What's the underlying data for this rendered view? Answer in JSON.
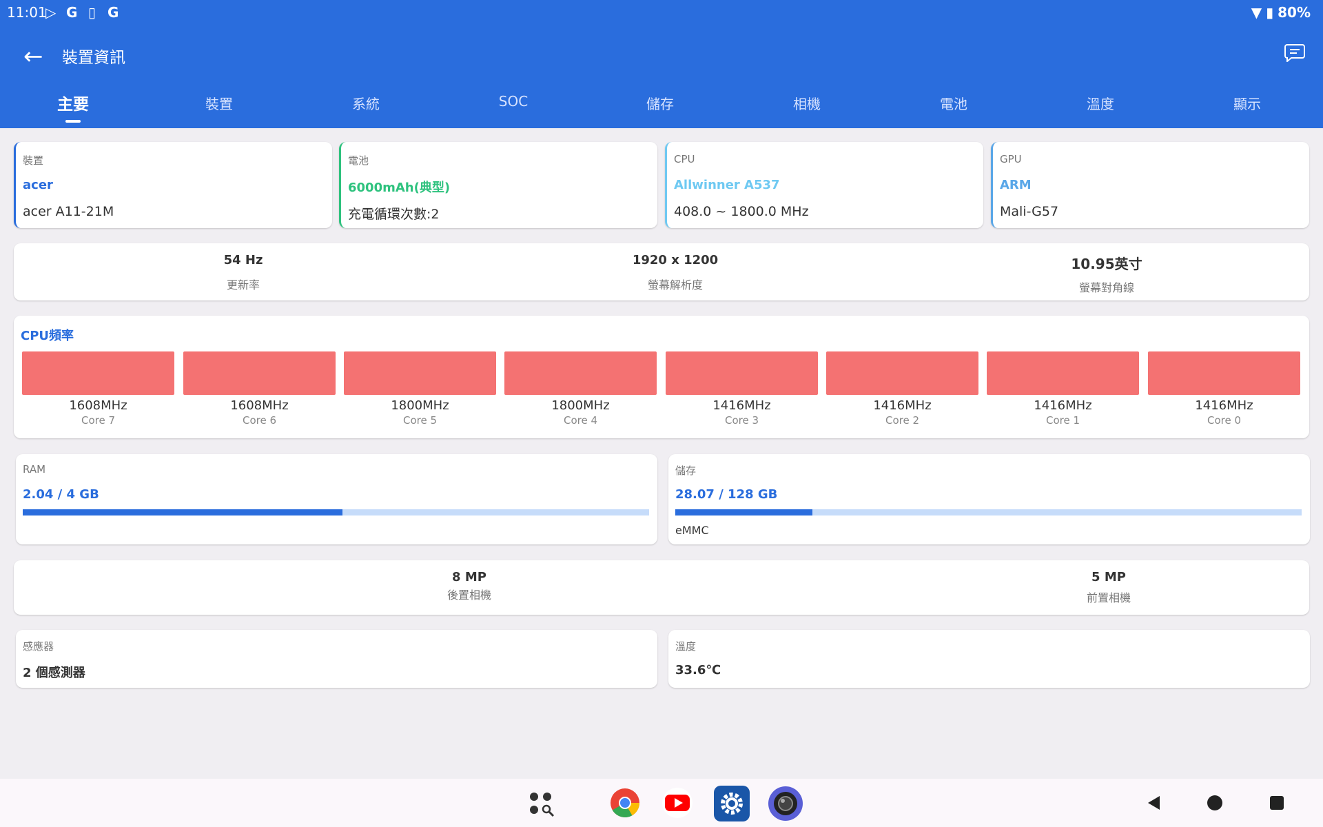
{
  "status": {
    "time": "11:01",
    "battery": "80%"
  },
  "header": {
    "title": "裝置資訊"
  },
  "tabs": [
    "主要",
    "裝置",
    "系統",
    "SOC",
    "儲存",
    "相機",
    "電池",
    "溫度",
    "顯示"
  ],
  "summary": {
    "device": {
      "label": "裝置",
      "value": "acer",
      "sub": "acer A11-21M",
      "color": "#2a6ddd"
    },
    "battery": {
      "label": "電池",
      "value": "6000mAh(典型)",
      "sub": "充電循環次數:2",
      "color": "#2ec27e"
    },
    "cpu": {
      "label": "CPU",
      "value": "Allwinner A537",
      "sub": "408.0 ~ 1800.0 MHz",
      "color": "#6fc9f2"
    },
    "gpu": {
      "label": "GPU",
      "value": "ARM",
      "sub": "Mali-G57",
      "color": "#5aa7e8"
    }
  },
  "display": [
    {
      "value": "54 Hz",
      "caption": "更新率"
    },
    {
      "value": "1920 x 1200",
      "caption": "螢幕解析度"
    },
    {
      "value": "10.95英寸",
      "caption": "螢幕對角線"
    }
  ],
  "cpu_freq": {
    "title": "CPU頻率",
    "cores": [
      {
        "freq": "1608MHz",
        "name": "Core 7"
      },
      {
        "freq": "1608MHz",
        "name": "Core 6"
      },
      {
        "freq": "1800MHz",
        "name": "Core 5"
      },
      {
        "freq": "1800MHz",
        "name": "Core 4"
      },
      {
        "freq": "1416MHz",
        "name": "Core 3"
      },
      {
        "freq": "1416MHz",
        "name": "Core 2"
      },
      {
        "freq": "1416MHz",
        "name": "Core 1"
      },
      {
        "freq": "1416MHz",
        "name": "Core 0"
      }
    ]
  },
  "ram": {
    "label": "RAM",
    "value": "2.04 / 4 GB",
    "fraction": 0.51
  },
  "storage": {
    "label": "儲存",
    "value": "28.07 / 128 GB",
    "fraction": 0.219,
    "type": "eMMC"
  },
  "camera": [
    {
      "value": "8 MP",
      "caption": "後置相機"
    },
    {
      "value": "5 MP",
      "caption": "前置相機"
    }
  ],
  "sensors": {
    "label": "感應器",
    "value": "2 個感測器"
  },
  "temperature": {
    "label": "溫度",
    "value": "33.6℃"
  },
  "colors": {
    "primary": "#2a6ddd",
    "core_bar": "#f47272",
    "progress_track": "#c6dcfa"
  },
  "nav": {
    "icons": [
      "app-drawer-icon",
      "chrome-icon",
      "youtube-icon",
      "settings-icon",
      "camera-app-icon"
    ],
    "buttons": [
      "back-icon",
      "home-icon",
      "recents-icon"
    ]
  }
}
